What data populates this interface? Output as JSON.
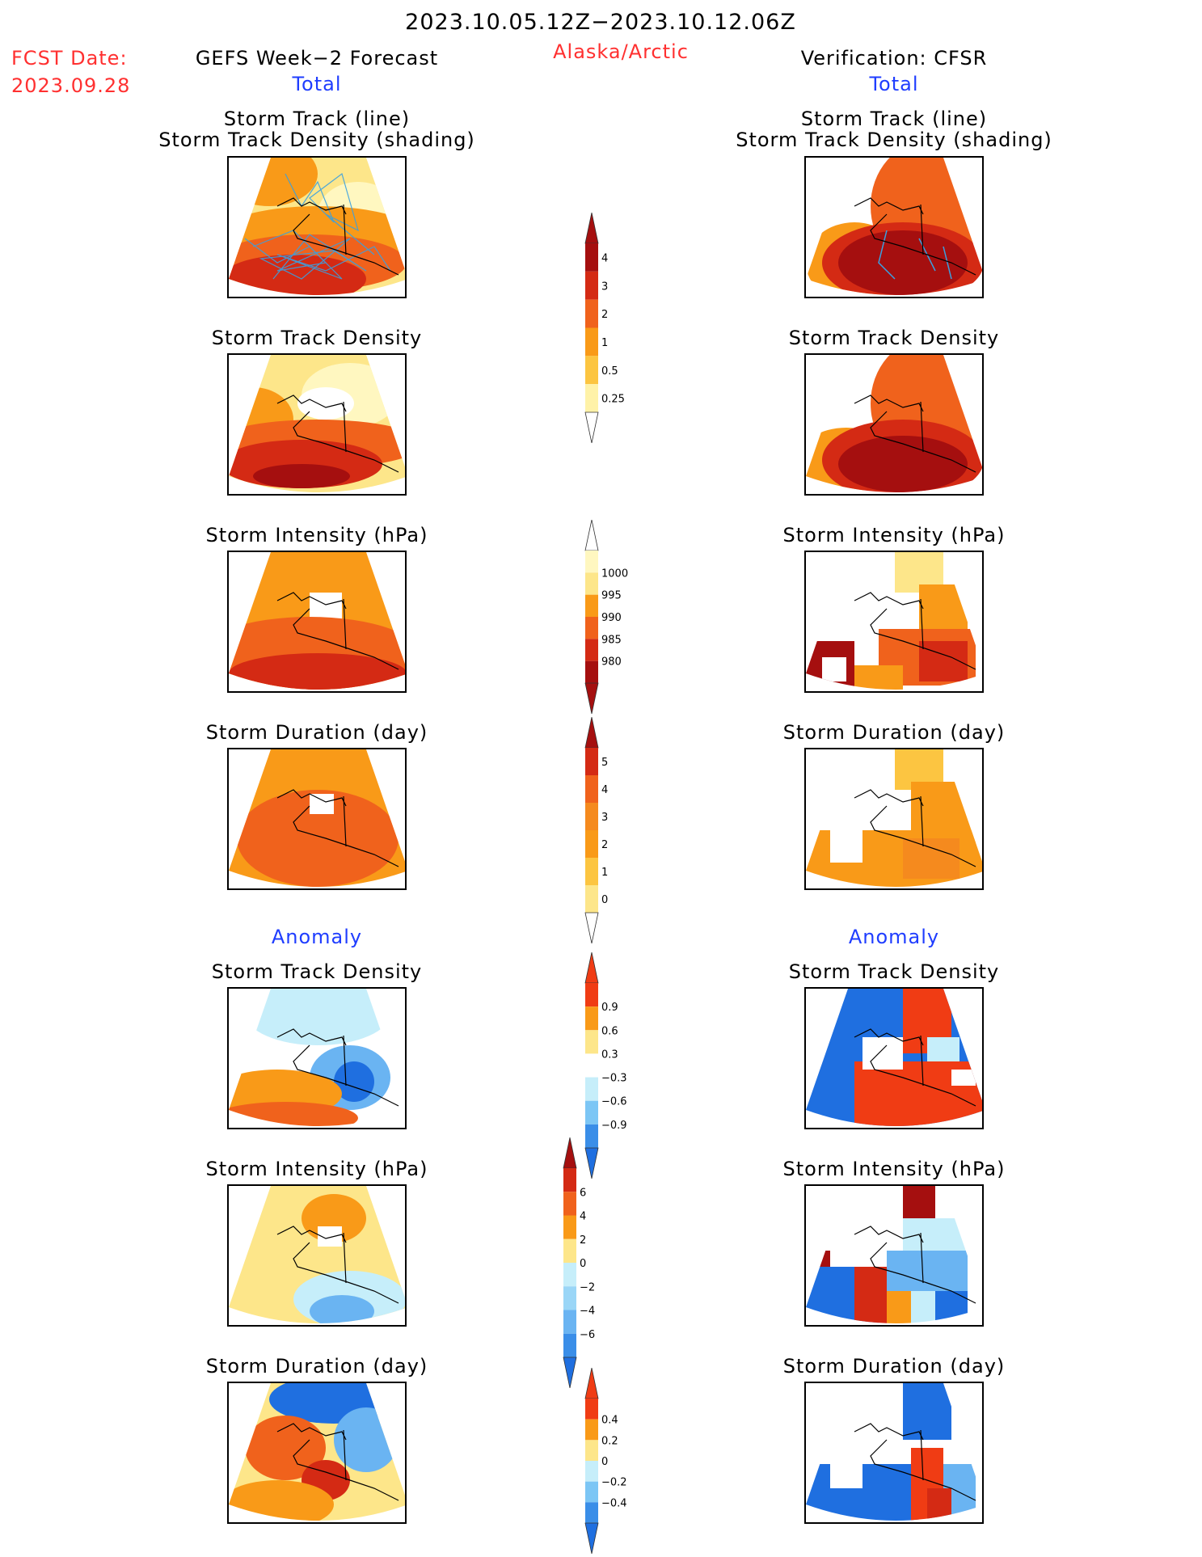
{
  "header": {
    "date_range": "2023.10.05.12Z−2023.10.12.06Z",
    "fcst_label": "FCST Date:",
    "fcst_date": "2023.09.28",
    "left_title": "GEFS Week−2 Forecast",
    "region": "Alaska/Arctic",
    "right_title": "Verification: CFSR"
  },
  "sections": {
    "total": "Total",
    "anomaly": "Anomaly"
  },
  "panel_titles": {
    "track_line": "Storm Track (line)",
    "track_density_shading": "Storm Track Density (shading)",
    "track_density": "Storm Track Density",
    "intensity": "Storm Intensity (hPa)",
    "duration": "Storm Duration (day)"
  },
  "colorbars": [
    {
      "id": "total-density",
      "labels": [
        "4",
        "3",
        "2",
        "1",
        "0.5",
        "0.25"
      ],
      "colors": [
        "#a50f0f",
        "#d42a14",
        "#f0621c",
        "#f99a18",
        "#fcc541",
        "#fff2a8"
      ],
      "top_arrow": "#a50f0f",
      "bottom_arrow": "#ffffff"
    },
    {
      "id": "total-intensity",
      "labels": [
        "1000",
        "995",
        "990",
        "985",
        "980"
      ],
      "colors": [
        "#fff7c0",
        "#fde68a",
        "#f99a18",
        "#f0621c",
        "#d42a14",
        "#a50f0f"
      ],
      "top_arrow": "#ffffff",
      "bottom_arrow": "#a50f0f"
    },
    {
      "id": "total-duration",
      "labels": [
        "5",
        "4",
        "3",
        "2",
        "1",
        "0"
      ],
      "colors": [
        "#d42a14",
        "#f0621c",
        "#f58a1e",
        "#f99a18",
        "#fcc541",
        "#fde68a"
      ],
      "top_arrow": "#a50f0f",
      "bottom_arrow": "#ffffff"
    },
    {
      "id": "anom-density",
      "labels": [
        "0.9",
        "0.6",
        "0.3",
        "−0.3",
        "−0.6",
        "−0.9"
      ],
      "colors": [
        "#f03c14",
        "#f99a18",
        "#fde68a",
        "#ffffff",
        "#c6eefa",
        "#7cc6f5",
        "#3a8ee8"
      ],
      "top_arrow": "#f03c14",
      "bottom_arrow": "#1f6fe0"
    },
    {
      "id": "anom-intensity",
      "labels": [
        "6",
        "4",
        "2",
        "0",
        "−2",
        "−4",
        "−6"
      ],
      "colors": [
        "#d42a14",
        "#f0621c",
        "#f99a18",
        "#fde68a",
        "#c6eefa",
        "#9ad6f7",
        "#6ab4f2",
        "#3a8ee8"
      ],
      "top_arrow": "#a50f0f",
      "bottom_arrow": "#1f6fe0"
    },
    {
      "id": "anom-duration",
      "labels": [
        "0.4",
        "0.2",
        "0",
        "−0.2",
        "−0.4"
      ],
      "colors": [
        "#f03c14",
        "#f99a18",
        "#fde68a",
        "#c6eefa",
        "#7cc6f5",
        "#3a8ee8"
      ],
      "top_arrow": "#f03c14",
      "bottom_arrow": "#1f6fe0"
    }
  ],
  "map_colors": {
    "dark_red": "#a50f0f",
    "red": "#d42a14",
    "orange_red": "#f0621c",
    "orange": "#f99a18",
    "light_orange": "#fcc541",
    "yellow": "#fde68a",
    "pale_yellow": "#fff7c0",
    "light_blue": "#c6eefa",
    "mid_blue": "#6ab4f2",
    "blue": "#1f6fe0",
    "track_line": "#3aa0e0"
  }
}
